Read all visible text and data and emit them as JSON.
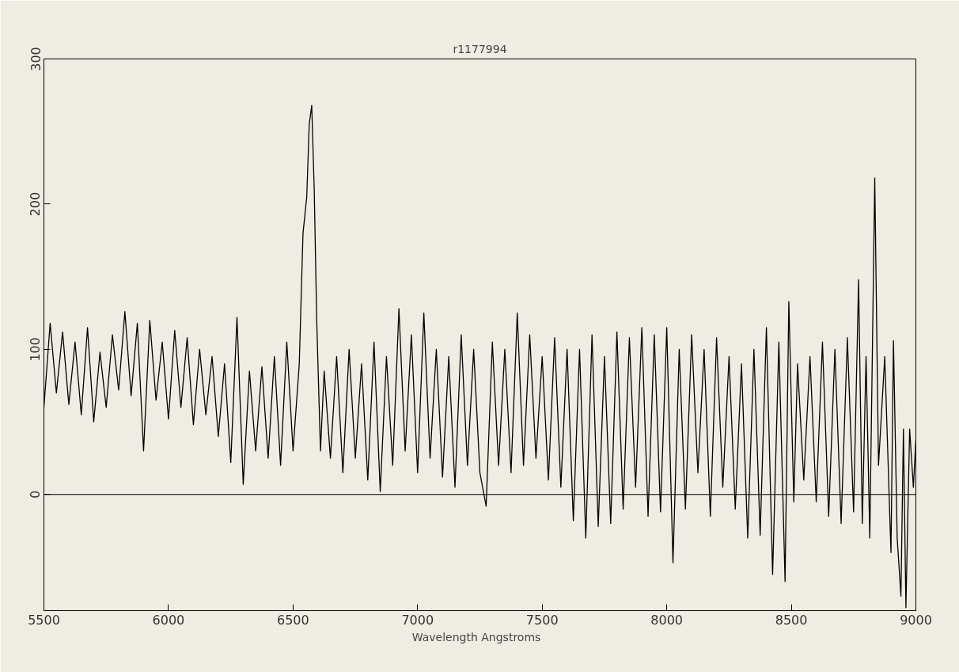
{
  "chart_data": {
    "type": "line",
    "title": "r1177994",
    "xlabel": "Wavelength   Angstroms",
    "x": [
      5500,
      5525,
      5550,
      5575,
      5600,
      5625,
      5650,
      5675,
      5700,
      5725,
      5750,
      5775,
      5800,
      5825,
      5850,
      5875,
      5900,
      5925,
      5950,
      5975,
      6000,
      6025,
      6050,
      6075,
      6100,
      6125,
      6150,
      6175,
      6200,
      6225,
      6250,
      6275,
      6300,
      6325,
      6350,
      6375,
      6400,
      6425,
      6450,
      6475,
      6500,
      6525,
      6540,
      6555,
      6565,
      6575,
      6585,
      6595,
      6610,
      6625,
      6650,
      6675,
      6700,
      6725,
      6750,
      6775,
      6800,
      6825,
      6850,
      6875,
      6900,
      6925,
      6950,
      6975,
      7000,
      7025,
      7050,
      7075,
      7100,
      7125,
      7150,
      7175,
      7200,
      7225,
      7250,
      7275,
      7300,
      7325,
      7350,
      7375,
      7400,
      7425,
      7450,
      7475,
      7500,
      7525,
      7550,
      7575,
      7600,
      7625,
      7650,
      7675,
      7700,
      7725,
      7750,
      7775,
      7800,
      7825,
      7850,
      7875,
      7900,
      7925,
      7950,
      7975,
      8000,
      8025,
      8050,
      8075,
      8100,
      8125,
      8150,
      8175,
      8200,
      8225,
      8250,
      8275,
      8300,
      8325,
      8350,
      8375,
      8400,
      8425,
      8450,
      8475,
      8490,
      8510,
      8525,
      8550,
      8575,
      8600,
      8625,
      8650,
      8675,
      8700,
      8725,
      8750,
      8770,
      8785,
      8800,
      8815,
      8835,
      8850,
      8875,
      8900,
      8910,
      8925,
      8940,
      8950,
      8960,
      8975,
      8990,
      9000
    ],
    "series": [
      {
        "color": "#000000",
        "values": [
          60,
          118,
          70,
          112,
          62,
          105,
          55,
          115,
          50,
          98,
          60,
          110,
          72,
          126,
          68,
          118,
          30,
          120,
          65,
          105,
          52,
          113,
          60,
          108,
          48,
          100,
          55,
          95,
          40,
          90,
          22,
          122,
          7,
          85,
          30,
          88,
          25,
          95,
          20,
          105,
          30,
          90,
          180,
          205,
          255,
          268,
          210,
          120,
          30,
          85,
          25,
          95,
          15,
          100,
          25,
          90,
          10,
          105,
          2,
          95,
          20,
          128,
          30,
          110,
          15,
          125,
          25,
          100,
          12,
          95,
          5,
          110,
          20,
          100,
          15,
          -8,
          105,
          20,
          100,
          15,
          125,
          20,
          110,
          25,
          95,
          10,
          108,
          5,
          100,
          -18,
          100,
          -30,
          110,
          -22,
          95,
          -20,
          112,
          -10,
          108,
          5,
          115,
          -15,
          110,
          -12,
          115,
          -47,
          100,
          -10,
          110,
          15,
          100,
          -15,
          108,
          5,
          95,
          -10,
          90,
          -30,
          100,
          -28,
          115,
          -55,
          105,
          -60,
          133,
          -5,
          90,
          10,
          95,
          -5,
          105,
          -15,
          100,
          -20,
          108,
          -12,
          148,
          -20,
          95,
          -30,
          218,
          20,
          95,
          -40,
          106,
          -30,
          -70,
          45,
          -78,
          45,
          5,
          38
        ]
      }
    ],
    "xlim": [
      5500,
      9000
    ],
    "ylim": [
      -80,
      300
    ],
    "xticks": [
      5500,
      6000,
      6500,
      7000,
      7500,
      8000,
      8500,
      9000
    ],
    "yticks": [
      0,
      100,
      200,
      300
    ],
    "ref_lines": [
      {
        "axis": "y",
        "value": 0,
        "label": null,
        "color": "#000000"
      }
    ],
    "grid": false,
    "line_style": "solid"
  }
}
